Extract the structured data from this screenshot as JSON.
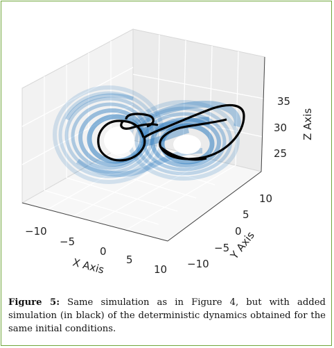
{
  "figure": {
    "caption_label": "Figure 5:",
    "caption_text": "Same simulation as in Figure 4, but with added simulation (in black) of the deterministic dynamics obtained for the same initial conditions."
  },
  "chart_data": {
    "type": "line",
    "projection": "3d",
    "xlabel": "X Axis",
    "ylabel": "Y Axis",
    "zlabel": "Z Axis",
    "x_ticks": [
      "−10",
      "−5",
      "0",
      "5",
      "10"
    ],
    "y_ticks": [
      "−10",
      "−5",
      "0",
      "5",
      "10"
    ],
    "z_ticks": [
      "25",
      "30",
      "35"
    ],
    "series": [
      {
        "color": "#1f77b4",
        "style": "many thin semi-transparent trajectories"
      },
      {
        "color": "#000000",
        "style": "single thick trajectory"
      }
    ],
    "grid": true
  }
}
